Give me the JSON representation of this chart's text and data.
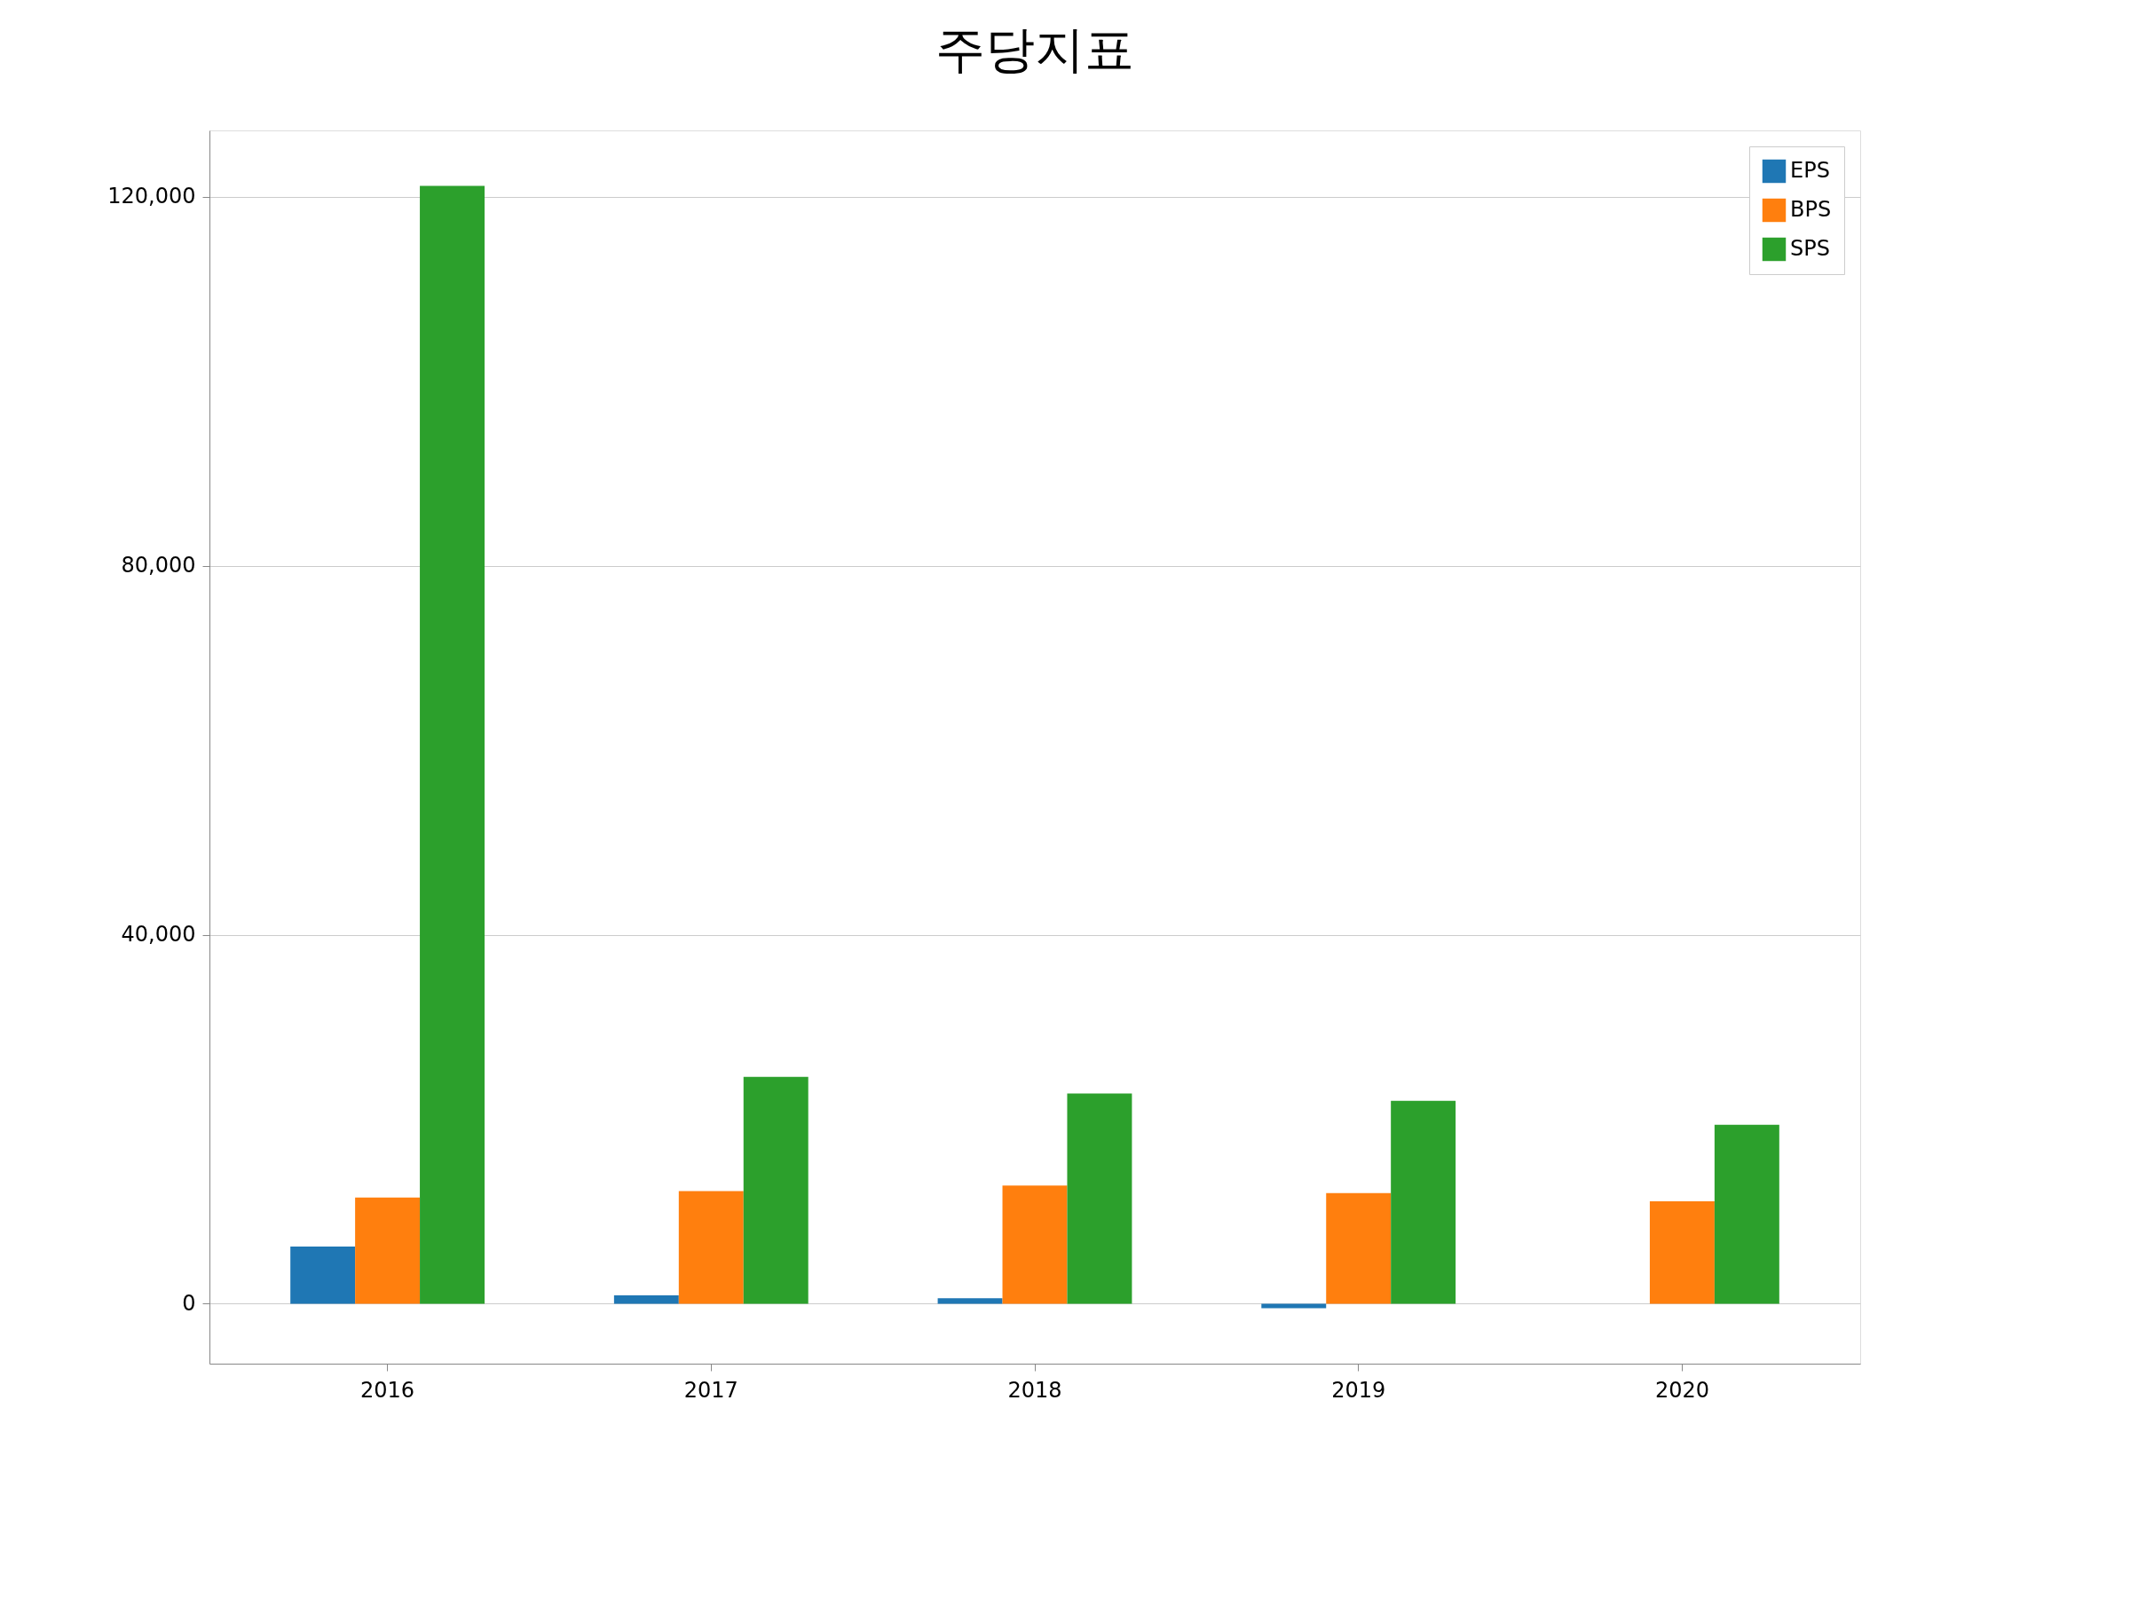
{
  "chart_data": {
    "type": "bar",
    "title": "주당지표",
    "categories": [
      "2016",
      "2017",
      "2018",
      "2019",
      "2020"
    ],
    "series": [
      {
        "name": "EPS",
        "color": "#1f77b4",
        "values": [
          6200,
          900,
          600,
          -500,
          null
        ]
      },
      {
        "name": "BPS",
        "color": "#ff7f0e",
        "values": [
          11500,
          12200,
          12800,
          12000,
          11100
        ]
      },
      {
        "name": "SPS",
        "color": "#2ca02c",
        "values": [
          121200,
          24600,
          22800,
          22000,
          19400
        ]
      }
    ],
    "ylim": [
      -6500,
      127200
    ],
    "yticks": [
      0,
      {
        "value": 40000,
        "label": "40,000"
      },
      {
        "value": 80000,
        "label": "80,000"
      },
      {
        "value": 120000,
        "label": "120,000"
      }
    ],
    "grid": "y",
    "legend": "top right"
  }
}
